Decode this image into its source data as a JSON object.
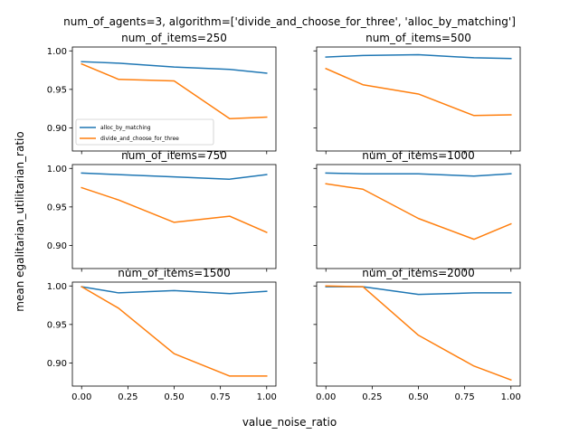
{
  "chart_data": {
    "type": "line",
    "suptitle": "num_of_agents=3, algorithm=['divide_and_choose_for_three', 'alloc_by_matching']",
    "xlabel": "value_noise_ratio",
    "ylabel": "mean egalitarian_utilitarian_ratio",
    "xlim": [
      -0.05,
      1.05
    ],
    "ylim": [
      0.87,
      1.005
    ],
    "x_ticks": [
      0.0,
      0.25,
      0.5,
      0.75,
      1.0
    ],
    "x_tick_labels": [
      "0.00",
      "0.25",
      "0.50",
      "0.75",
      "1.00"
    ],
    "y_ticks": [
      0.9,
      0.95,
      1.0
    ],
    "y_tick_labels": [
      "0.90",
      "0.95",
      "1.00"
    ],
    "colors": {
      "alloc_by_matching": "#1f77b4",
      "divide_and_choose_for_three": "#ff7f0e"
    },
    "legend": {
      "placement": "lower-left",
      "entries": [
        "alloc_by_matching",
        "divide_and_choose_for_three"
      ]
    },
    "x": [
      0.0,
      0.2,
      0.5,
      0.8,
      1.0
    ],
    "panels": [
      {
        "title": "num_of_items=250",
        "series": [
          {
            "name": "alloc_by_matching",
            "values": [
              0.986,
              0.984,
              0.979,
              0.976,
              0.971
            ]
          },
          {
            "name": "divide_and_choose_for_three",
            "values": [
              0.983,
              0.963,
              0.961,
              0.912,
              0.914
            ]
          }
        ]
      },
      {
        "title": "num_of_items=500",
        "series": [
          {
            "name": "alloc_by_matching",
            "values": [
              0.992,
              0.994,
              0.995,
              0.991,
              0.99
            ]
          },
          {
            "name": "divide_and_choose_for_three",
            "values": [
              0.977,
              0.956,
              0.944,
              0.916,
              0.917
            ]
          }
        ]
      },
      {
        "title": "num_of_items=750",
        "series": [
          {
            "name": "alloc_by_matching",
            "values": [
              0.994,
              0.992,
              0.989,
              0.986,
              0.992
            ]
          },
          {
            "name": "divide_and_choose_for_three",
            "values": [
              0.975,
              0.959,
              0.93,
              0.938,
              0.917
            ]
          }
        ]
      },
      {
        "title": "num_of_items=1000",
        "series": [
          {
            "name": "alloc_by_matching",
            "values": [
              0.994,
              0.993,
              0.993,
              0.99,
              0.993
            ]
          },
          {
            "name": "divide_and_choose_for_three",
            "values": [
              0.98,
              0.973,
              0.935,
              0.908,
              0.928
            ]
          }
        ]
      },
      {
        "title": "num_of_items=1500",
        "series": [
          {
            "name": "alloc_by_matching",
            "values": [
              0.999,
              0.991,
              0.994,
              0.99,
              0.993
            ]
          },
          {
            "name": "divide_and_choose_for_three",
            "values": [
              0.999,
              0.971,
              0.912,
              0.883,
              0.883
            ]
          }
        ]
      },
      {
        "title": "num_of_items=2000",
        "series": [
          {
            "name": "alloc_by_matching",
            "values": [
              0.999,
              0.999,
              0.989,
              0.991,
              0.991
            ]
          },
          {
            "name": "divide_and_choose_for_three",
            "values": [
              1.0,
              0.999,
              0.936,
              0.896,
              0.878
            ]
          }
        ]
      }
    ]
  }
}
